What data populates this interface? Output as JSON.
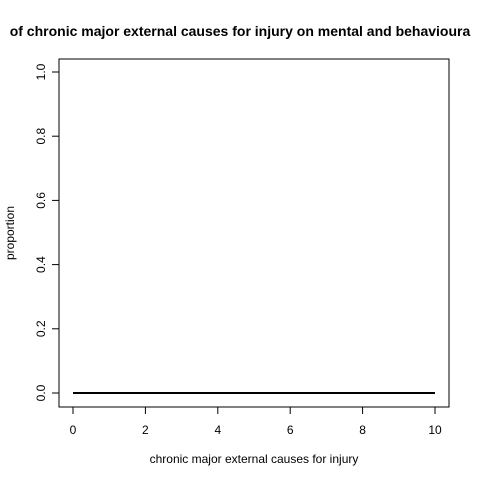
{
  "chart_data": {
    "type": "line",
    "title": "of chronic major external causes for injury on mental and behavioura",
    "xlabel": "chronic major external causes for injury",
    "ylabel": "proportion",
    "xlim": [
      0,
      10
    ],
    "ylim": [
      0,
      1
    ],
    "x_ticks": [
      "0",
      "2",
      "4",
      "6",
      "8",
      "10"
    ],
    "y_ticks": [
      "0.0",
      "0.2",
      "0.4",
      "0.6",
      "0.8",
      "1.0"
    ],
    "series": [
      {
        "name": "proportion",
        "x": [
          0,
          10
        ],
        "y": [
          0,
          0
        ],
        "color": "#000000"
      }
    ],
    "grid": false,
    "legend": "none"
  }
}
